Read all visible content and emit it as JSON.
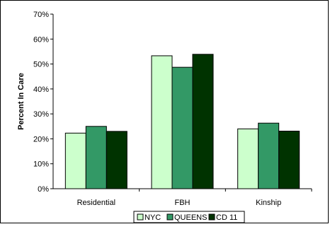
{
  "chart_data": {
    "type": "bar",
    "categories": [
      "Residential",
      "FBH",
      "Kinship"
    ],
    "series": [
      {
        "name": "NYC",
        "values": [
          22.3,
          53.3,
          24.0
        ],
        "color": "#ccffcc"
      },
      {
        "name": "QUEENS",
        "values": [
          25.0,
          48.7,
          26.3
        ],
        "color": "#339966"
      },
      {
        "name": "CD 11",
        "values": [
          23.0,
          53.9,
          23.1
        ],
        "color": "#003300"
      }
    ],
    "ylabel": "Percent In Care",
    "xlabel": "",
    "title": "",
    "ylim": [
      0,
      70
    ],
    "yticks": [
      "0%",
      "10%",
      "20%",
      "30%",
      "40%",
      "50%",
      "60%",
      "70%"
    ],
    "ytick_values": [
      0,
      10,
      20,
      30,
      40,
      50,
      60,
      70
    ],
    "grid": false,
    "legend_position": "bottom"
  }
}
